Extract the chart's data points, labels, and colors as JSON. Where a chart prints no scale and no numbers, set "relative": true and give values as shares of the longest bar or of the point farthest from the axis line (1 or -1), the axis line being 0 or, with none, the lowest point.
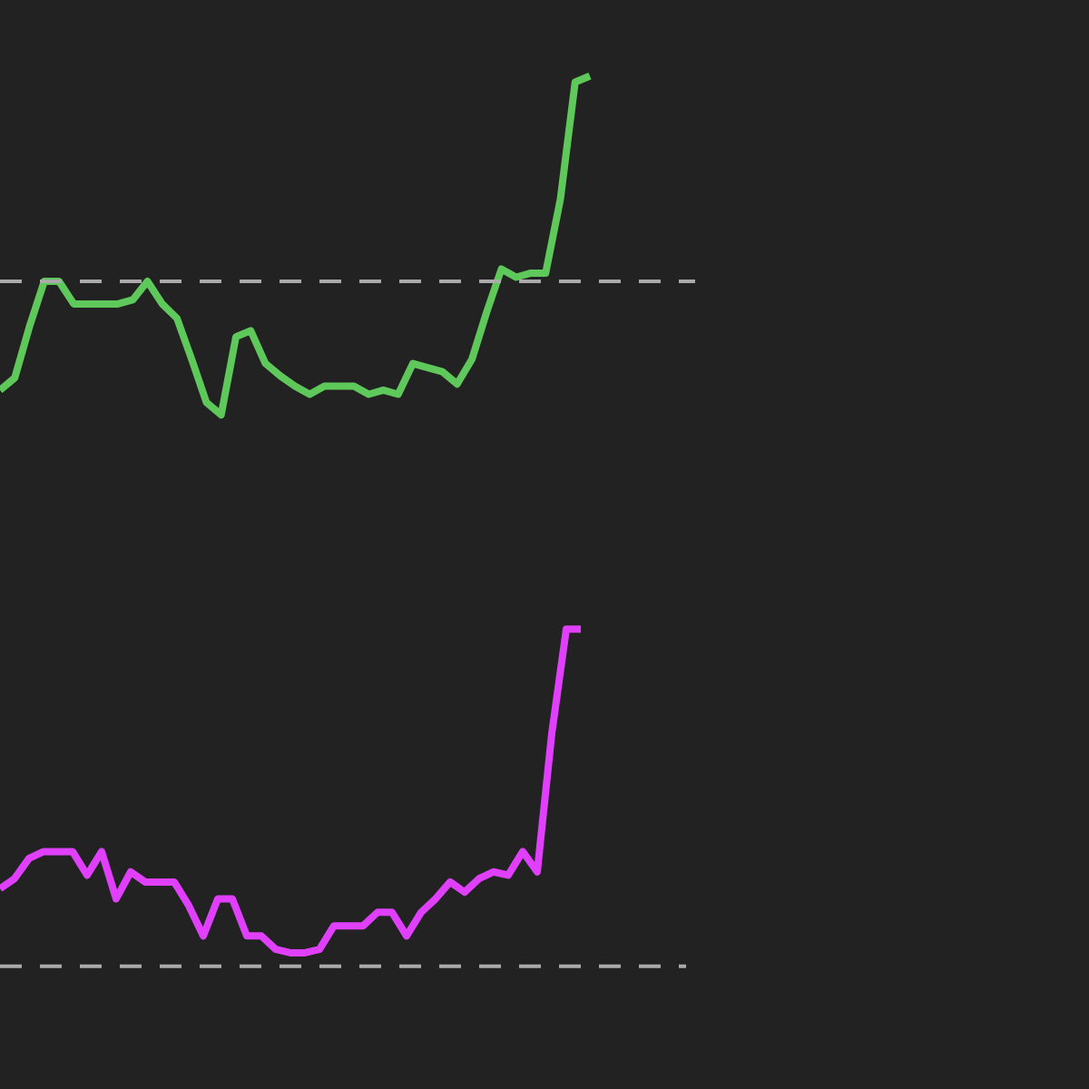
{
  "chart_data": [
    {
      "type": "line",
      "relative": true,
      "categories": [
        null,
        null,
        null,
        null,
        null,
        null,
        null,
        null,
        null,
        null,
        null,
        null,
        null,
        null,
        null,
        null,
        null,
        null,
        null,
        null,
        null,
        null,
        null,
        null,
        null,
        null,
        null,
        null,
        null,
        null,
        null,
        null,
        null,
        null,
        null,
        null,
        null,
        null,
        null,
        null,
        null
      ],
      "series": [
        {
          "color": "#5ec85a",
          "values": [
            -0.53,
            -0.47,
            -0.22,
            0,
            0,
            -0.11,
            -0.11,
            -0.11,
            -0.11,
            -0.09,
            0,
            -0.11,
            -0.18,
            -0.38,
            -0.59,
            -0.65,
            -0.27,
            -0.24,
            -0.4,
            -0.46,
            -0.51,
            -0.55,
            -0.51,
            -0.51,
            -0.51,
            -0.55,
            -0.53,
            -0.55,
            -0.4,
            -0.42,
            -0.44,
            -0.5,
            -0.38,
            -0.15,
            0.06,
            0.02,
            0.04,
            0.04,
            0.4,
            0.97,
            1
          ]
        }
      ],
      "ref_lines": [
        {
          "axis": "y",
          "value": 0,
          "color": "#aaaaaa",
          "line_style": "dashed"
        }
      ]
    },
    {
      "type": "line",
      "relative": true,
      "categories": [
        null,
        null,
        null,
        null,
        null,
        null,
        null,
        null,
        null,
        null,
        null,
        null,
        null,
        null,
        null,
        null,
        null,
        null,
        null,
        null,
        null,
        null,
        null,
        null,
        null,
        null,
        null,
        null,
        null,
        null,
        null,
        null,
        null,
        null,
        null,
        null,
        null,
        null,
        null,
        null,
        null
      ],
      "series": [
        {
          "color": "#e040fb",
          "values": [
            0.23,
            0.26,
            0.32,
            0.34,
            0.34,
            0.34,
            0.27,
            0.34,
            0.2,
            0.28,
            0.25,
            0.25,
            0.25,
            0.18,
            0.09,
            0.2,
            0.2,
            0.09,
            0.09,
            0.05,
            0.04,
            0.04,
            0.05,
            0.12,
            0.12,
            0.12,
            0.16,
            0.16,
            0.09,
            0.16,
            0.2,
            0.25,
            0.22,
            0.26,
            0.28,
            0.27,
            0.34,
            0.28,
            0.69,
            1,
            1
          ]
        }
      ],
      "ref_lines": [
        {
          "axis": "y",
          "value": 0,
          "color": "#aaaaaa",
          "line_style": "dashed"
        }
      ]
    }
  ]
}
